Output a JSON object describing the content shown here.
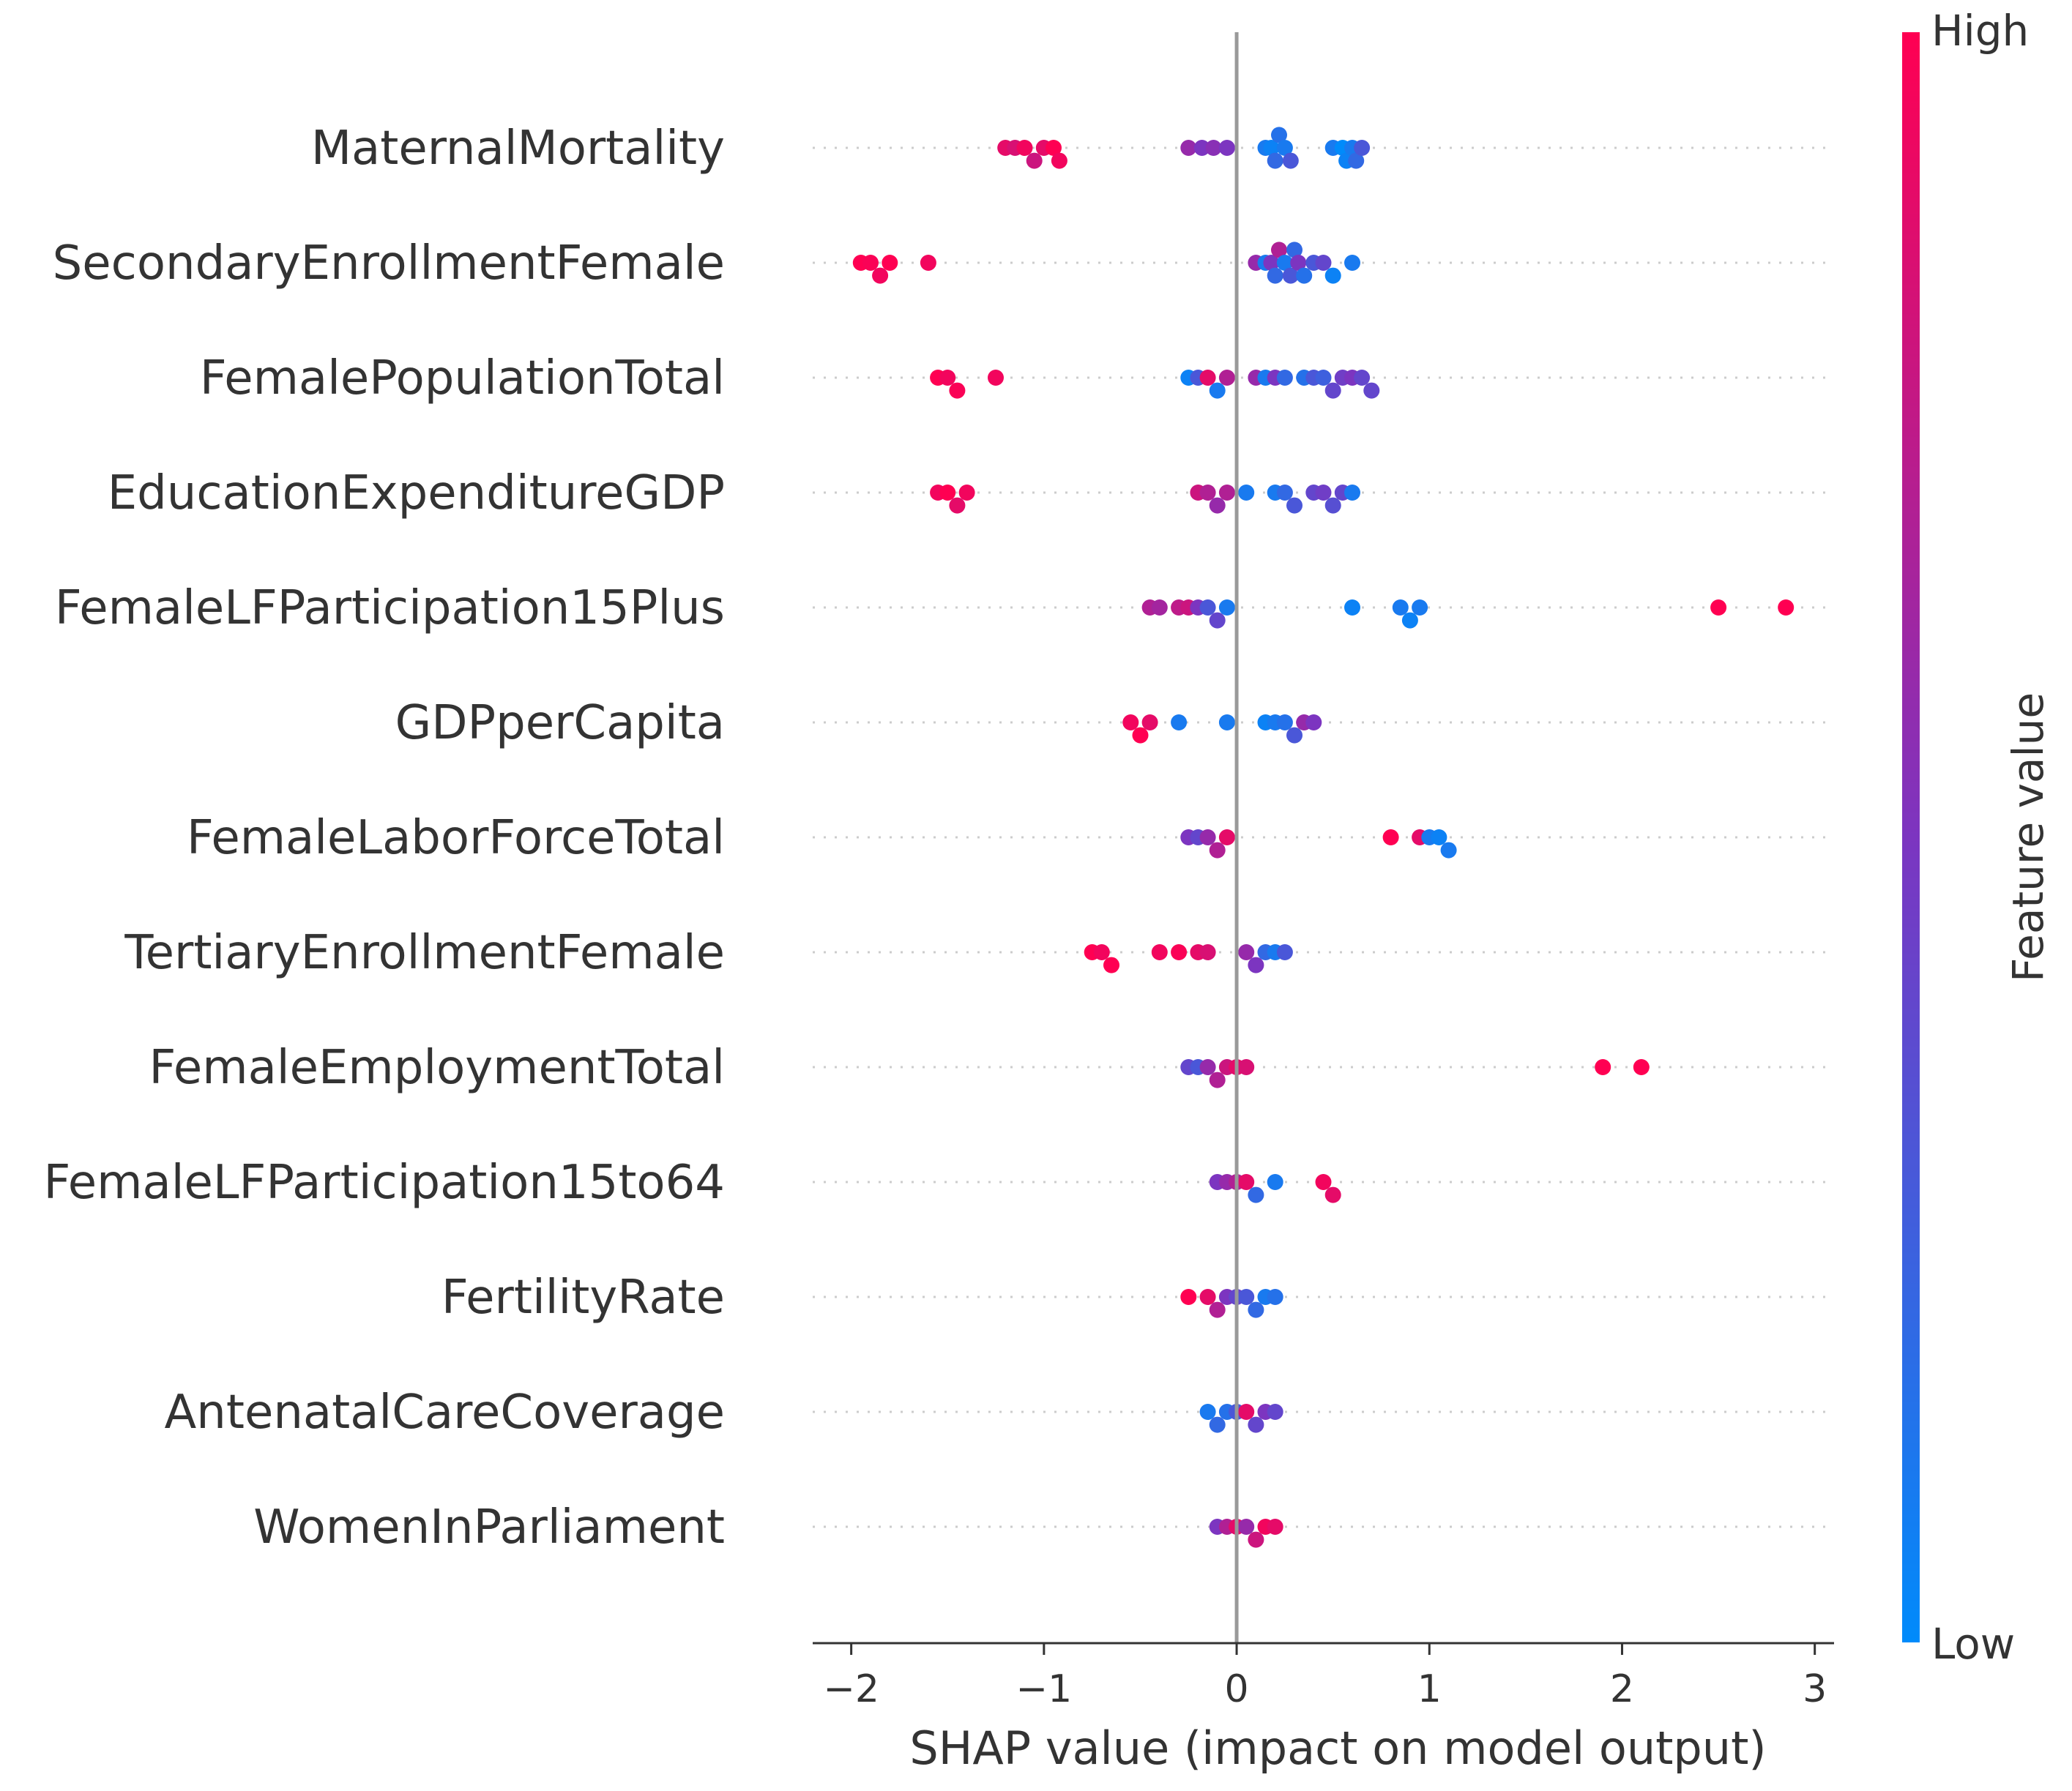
{
  "chart_data": {
    "type": "scatter",
    "subtype": "shap-beeswarm",
    "xlabel": "SHAP value (impact on model output)",
    "xlim": [
      -2.2,
      3.1
    ],
    "xticks": [
      -2,
      -1,
      0,
      1,
      2,
      3
    ],
    "xtick_labels": [
      "−2",
      "−1",
      "0",
      "1",
      "2",
      "3"
    ],
    "colorbar": {
      "label": "Feature value",
      "high_label": "High",
      "low_label": "Low",
      "high_color": "#ff0052",
      "low_color": "#008bfb"
    },
    "features": [
      {
        "name": "MaternalMortality",
        "points": [
          [
            -1.2,
            0.9
          ],
          [
            -1.15,
            0.85
          ],
          [
            -1.1,
            0.95
          ],
          [
            -1.05,
            0.8
          ],
          [
            -1.0,
            0.9
          ],
          [
            -0.95,
            1.0
          ],
          [
            -0.92,
            0.95
          ],
          [
            -0.25,
            0.6
          ],
          [
            -0.18,
            0.5
          ],
          [
            -0.12,
            0.55
          ],
          [
            -0.05,
            0.5
          ],
          [
            0.15,
            0.1
          ],
          [
            0.18,
            0.05
          ],
          [
            0.2,
            0.2
          ],
          [
            0.22,
            0.15
          ],
          [
            0.25,
            0.1
          ],
          [
            0.28,
            0.3
          ],
          [
            0.5,
            0.1
          ],
          [
            0.55,
            0.0
          ],
          [
            0.57,
            0.05
          ],
          [
            0.6,
            0.1
          ],
          [
            0.62,
            0.2
          ],
          [
            0.65,
            0.3
          ]
        ]
      },
      {
        "name": "SecondaryEnrollmentFemale",
        "points": [
          [
            -1.95,
            1.0
          ],
          [
            -1.9,
            0.98
          ],
          [
            -1.85,
            0.95
          ],
          [
            -1.8,
            1.0
          ],
          [
            -1.6,
            0.95
          ],
          [
            0.1,
            0.6
          ],
          [
            0.15,
            0.1
          ],
          [
            0.18,
            0.5
          ],
          [
            0.2,
            0.2
          ],
          [
            0.22,
            0.7
          ],
          [
            0.25,
            0.1
          ],
          [
            0.28,
            0.3
          ],
          [
            0.3,
            0.2
          ],
          [
            0.32,
            0.5
          ],
          [
            0.35,
            0.15
          ],
          [
            0.4,
            0.3
          ],
          [
            0.45,
            0.4
          ],
          [
            0.5,
            0.05
          ],
          [
            0.6,
            0.1
          ]
        ]
      },
      {
        "name": "FemalePopulationTotal",
        "points": [
          [
            -1.55,
            1.0
          ],
          [
            -1.5,
            0.95
          ],
          [
            -1.45,
            0.98
          ],
          [
            -1.25,
            0.95
          ],
          [
            -0.25,
            0.05
          ],
          [
            -0.2,
            0.3
          ],
          [
            -0.15,
            0.9
          ],
          [
            -0.1,
            0.1
          ],
          [
            -0.05,
            0.7
          ],
          [
            0.1,
            0.6
          ],
          [
            0.15,
            0.1
          ],
          [
            0.2,
            0.5
          ],
          [
            0.25,
            0.2
          ],
          [
            0.35,
            0.15
          ],
          [
            0.4,
            0.3
          ],
          [
            0.45,
            0.25
          ],
          [
            0.5,
            0.4
          ],
          [
            0.55,
            0.45
          ],
          [
            0.6,
            0.5
          ],
          [
            0.65,
            0.4
          ],
          [
            0.7,
            0.4
          ]
        ]
      },
      {
        "name": "EducationExpenditureGDP",
        "points": [
          [
            -1.55,
            0.95
          ],
          [
            -1.5,
            1.0
          ],
          [
            -1.45,
            0.9
          ],
          [
            -1.4,
            0.95
          ],
          [
            -0.2,
            0.8
          ],
          [
            -0.15,
            0.7
          ],
          [
            -0.1,
            0.6
          ],
          [
            -0.05,
            0.7
          ],
          [
            0.05,
            0.1
          ],
          [
            0.2,
            0.1
          ],
          [
            0.25,
            0.2
          ],
          [
            0.3,
            0.3
          ],
          [
            0.4,
            0.4
          ],
          [
            0.45,
            0.45
          ],
          [
            0.5,
            0.35
          ],
          [
            0.55,
            0.4
          ],
          [
            0.6,
            0.1
          ]
        ]
      },
      {
        "name": "FemaleLFParticipation15Plus",
        "points": [
          [
            -0.45,
            0.7
          ],
          [
            -0.4,
            0.65
          ],
          [
            -0.3,
            0.75
          ],
          [
            -0.25,
            0.8
          ],
          [
            -0.2,
            0.5
          ],
          [
            -0.15,
            0.3
          ],
          [
            -0.1,
            0.4
          ],
          [
            -0.05,
            0.1
          ],
          [
            0.6,
            0.05
          ],
          [
            0.85,
            0.1
          ],
          [
            0.9,
            0.05
          ],
          [
            0.95,
            0.1
          ],
          [
            2.5,
            1.0
          ],
          [
            2.85,
            1.0
          ]
        ]
      },
      {
        "name": "GDPperCapita",
        "points": [
          [
            -0.55,
            0.95
          ],
          [
            -0.5,
            1.0
          ],
          [
            -0.45,
            0.9
          ],
          [
            -0.3,
            0.1
          ],
          [
            -0.05,
            0.1
          ],
          [
            0.15,
            0.05
          ],
          [
            0.2,
            0.1
          ],
          [
            0.25,
            0.15
          ],
          [
            0.3,
            0.3
          ],
          [
            0.35,
            0.6
          ],
          [
            0.4,
            0.5
          ]
        ]
      },
      {
        "name": "FemaleLaborForceTotal",
        "points": [
          [
            -0.25,
            0.5
          ],
          [
            -0.2,
            0.4
          ],
          [
            -0.15,
            0.6
          ],
          [
            -0.1,
            0.7
          ],
          [
            -0.05,
            0.9
          ],
          [
            0.8,
            1.0
          ],
          [
            0.95,
            0.9
          ],
          [
            1.0,
            0.1
          ],
          [
            1.05,
            0.05
          ],
          [
            1.1,
            0.1
          ]
        ]
      },
      {
        "name": "TertiaryEnrollmentFemale",
        "points": [
          [
            -0.75,
            1.0
          ],
          [
            -0.7,
            0.95
          ],
          [
            -0.65,
            1.0
          ],
          [
            -0.4,
            0.95
          ],
          [
            -0.3,
            0.98
          ],
          [
            -0.2,
            0.9
          ],
          [
            -0.15,
            0.85
          ],
          [
            0.05,
            0.6
          ],
          [
            0.1,
            0.5
          ],
          [
            0.15,
            0.2
          ],
          [
            0.2,
            0.1
          ],
          [
            0.25,
            0.3
          ]
        ]
      },
      {
        "name": "FemaleEmploymentTotal",
        "points": [
          [
            -0.25,
            0.4
          ],
          [
            -0.2,
            0.3
          ],
          [
            -0.15,
            0.6
          ],
          [
            -0.1,
            0.7
          ],
          [
            -0.05,
            0.8
          ],
          [
            0.0,
            0.9
          ],
          [
            0.05,
            0.85
          ],
          [
            1.9,
            1.0
          ],
          [
            2.1,
            1.0
          ]
        ]
      },
      {
        "name": "FemaleLFParticipation15to64",
        "points": [
          [
            -0.1,
            0.5
          ],
          [
            -0.05,
            0.6
          ],
          [
            0.0,
            0.7
          ],
          [
            0.05,
            0.9
          ],
          [
            0.1,
            0.2
          ],
          [
            0.2,
            0.1
          ],
          [
            0.45,
            0.95
          ],
          [
            0.5,
            0.9
          ]
        ]
      },
      {
        "name": "FertilityRate",
        "points": [
          [
            -0.25,
            1.0
          ],
          [
            -0.15,
            0.9
          ],
          [
            -0.1,
            0.7
          ],
          [
            -0.05,
            0.5
          ],
          [
            0.0,
            0.4
          ],
          [
            0.05,
            0.3
          ],
          [
            0.1,
            0.2
          ],
          [
            0.15,
            0.1
          ],
          [
            0.2,
            0.15
          ]
        ]
      },
      {
        "name": "AntenatalCareCoverage",
        "points": [
          [
            -0.15,
            0.1
          ],
          [
            -0.1,
            0.2
          ],
          [
            -0.05,
            0.15
          ],
          [
            0.0,
            0.3
          ],
          [
            0.05,
            0.9
          ],
          [
            0.1,
            0.4
          ],
          [
            0.15,
            0.5
          ],
          [
            0.2,
            0.4
          ]
        ]
      },
      {
        "name": "WomenInParliament",
        "points": [
          [
            -0.1,
            0.5
          ],
          [
            -0.05,
            0.7
          ],
          [
            0.0,
            0.9
          ],
          [
            0.05,
            0.6
          ],
          [
            0.1,
            0.8
          ],
          [
            0.15,
            0.95
          ],
          [
            0.2,
            0.9
          ]
        ]
      }
    ]
  }
}
